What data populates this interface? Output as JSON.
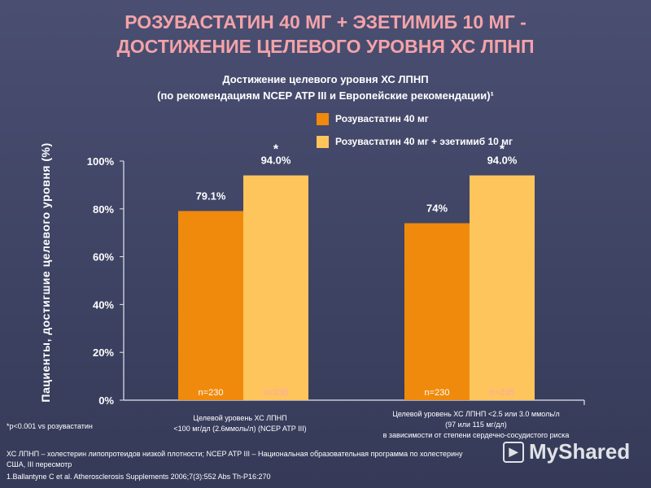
{
  "title_line1": "РОЗУВАСТАТИН 40 МГ + ЭЗЕТИМИБ 10 МГ -",
  "title_line2": "ДОСТИЖЕНИЕ ЦЕЛЕВОГО УРОВНЯ ХС ЛПНП",
  "colors": {
    "title": "#f3a3a8",
    "series1": "#f08a0c",
    "series2": "#fdc55c",
    "n_series2": "#fca8ac"
  },
  "chart_data": {
    "type": "bar",
    "title": "Достижение целевого уровня ХС ЛПНП",
    "subtitle": "(по рекомендациям NCEP ATP III и Европейские рекомендации)¹",
    "ylabel": "Пациенты, достигшие целевого уровня (%)",
    "ylim": [
      0,
      100
    ],
    "yticks": [
      "0%",
      "20%",
      "40%",
      "60%",
      "80%",
      "100%"
    ],
    "categories": [
      [
        "Целевой уровень ХС ЛПНП",
        "<100 мг/дл (2.6ммоль/л) (NCEP ATP III)"
      ],
      [
        "Целевой уровень ХС ЛПНП <2.5 или 3.0 ммоль/л",
        "(97 или 115 мг/дл)",
        "в зависимости от степени сердечно-сосудистого риска"
      ]
    ],
    "series": [
      {
        "name": "Розувастатин 40 мг",
        "values": [
          79.1,
          74
        ],
        "labels": [
          "79.1%",
          "74%"
        ],
        "n": [
          "n=230",
          "n=230"
        ],
        "star": [
          false,
          false
        ]
      },
      {
        "name": "Розувастатин 40 мг + эзетимиб 10 мг",
        "values": [
          94.0,
          94.0
        ],
        "labels": [
          "94.0%",
          "94.0%"
        ],
        "n": [
          "n=235",
          "n=235"
        ],
        "star": [
          true,
          true
        ]
      }
    ],
    "legend": "top-right",
    "grid": false
  },
  "footnotes": {
    "pvalue": "*p<0.001 vs розувастатин",
    "abbrev_line1": "ХС ЛПНП – холестерин липопротеидов низкой плотности; NCEP ATP III – Национальная образовательная программа по холестерину",
    "abbrev_line2": "США, III пересмотр",
    "reference": "1.Ballantyne C et al. Atherosclerosis Supplements 2006;7(3):552 Abs Th-P16:270"
  },
  "watermark": "MyShared"
}
